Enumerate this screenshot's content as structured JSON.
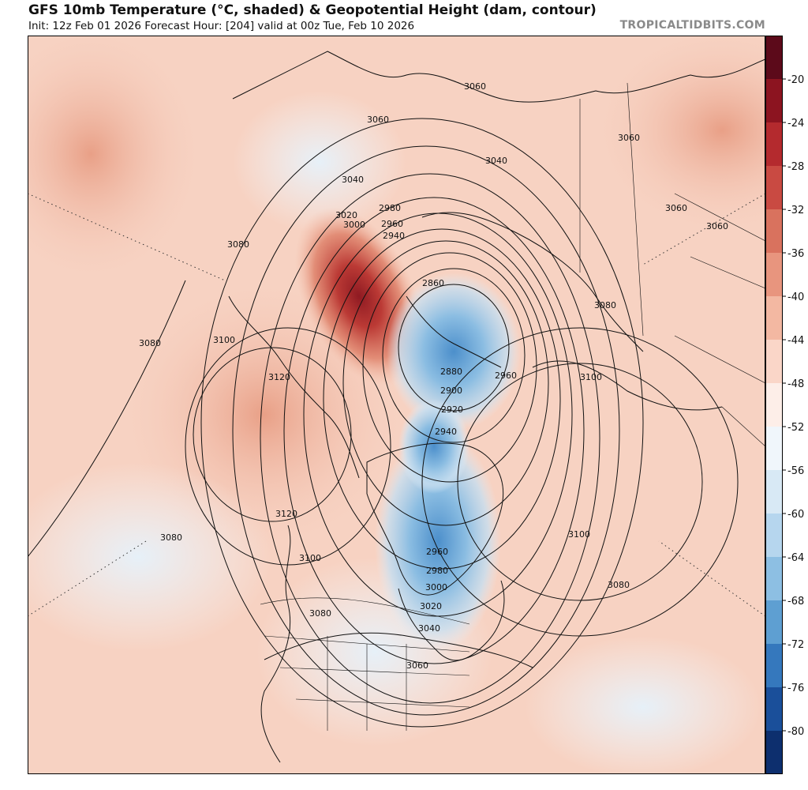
{
  "header": {
    "title": "GFS 10mb Temperature (°C, shaded) & Geopotential Height (dam, contour)",
    "subtitle": "Init: 12z Feb 01 2026   Forecast Hour: [204]   valid at 00z Tue, Feb 10 2026",
    "credit": "TROPICALTIDBITS.COM"
  },
  "colorbar": {
    "labels": [
      "-20",
      "-24",
      "-28",
      "-32",
      "-36",
      "-40",
      "-44",
      "-48",
      "-52",
      "-56",
      "-60",
      "-64",
      "-68",
      "-72",
      "-76",
      "-80"
    ],
    "colors": [
      "#5c0a1a",
      "#8c1420",
      "#b42a2e",
      "#c94a42",
      "#d9725e",
      "#e8957e",
      "#f3b8a2",
      "#fad6c8",
      "#fdeee8",
      "#f0f6fb",
      "#d8e9f5",
      "#b6d6ee",
      "#8dbfe3",
      "#5e9fd2",
      "#3578bd",
      "#1a4f9a",
      "#0d2f6e"
    ]
  },
  "map": {
    "contour_labels": [
      {
        "text": "3060"
      },
      {
        "text": "3060"
      },
      {
        "text": "3060"
      },
      {
        "text": "3040"
      },
      {
        "text": "3040"
      },
      {
        "text": "3020"
      },
      {
        "text": "3000"
      },
      {
        "text": "2980"
      },
      {
        "text": "2960"
      },
      {
        "text": "2940"
      },
      {
        "text": "3080"
      },
      {
        "text": "3060"
      },
      {
        "text": "3060"
      },
      {
        "text": "2860"
      },
      {
        "text": "3080"
      },
      {
        "text": "3080"
      },
      {
        "text": "3100"
      },
      {
        "text": "3120"
      },
      {
        "text": "2880"
      },
      {
        "text": "2900"
      },
      {
        "text": "2960"
      },
      {
        "text": "3100"
      },
      {
        "text": "2920"
      },
      {
        "text": "2940"
      },
      {
        "text": "3120"
      },
      {
        "text": "3080"
      },
      {
        "text": "3100"
      },
      {
        "text": "3100"
      },
      {
        "text": "2960"
      },
      {
        "text": "2980"
      },
      {
        "text": "3000"
      },
      {
        "text": "3080"
      },
      {
        "text": "3080"
      },
      {
        "text": "3020"
      },
      {
        "text": "3040"
      },
      {
        "text": "3060"
      }
    ]
  }
}
